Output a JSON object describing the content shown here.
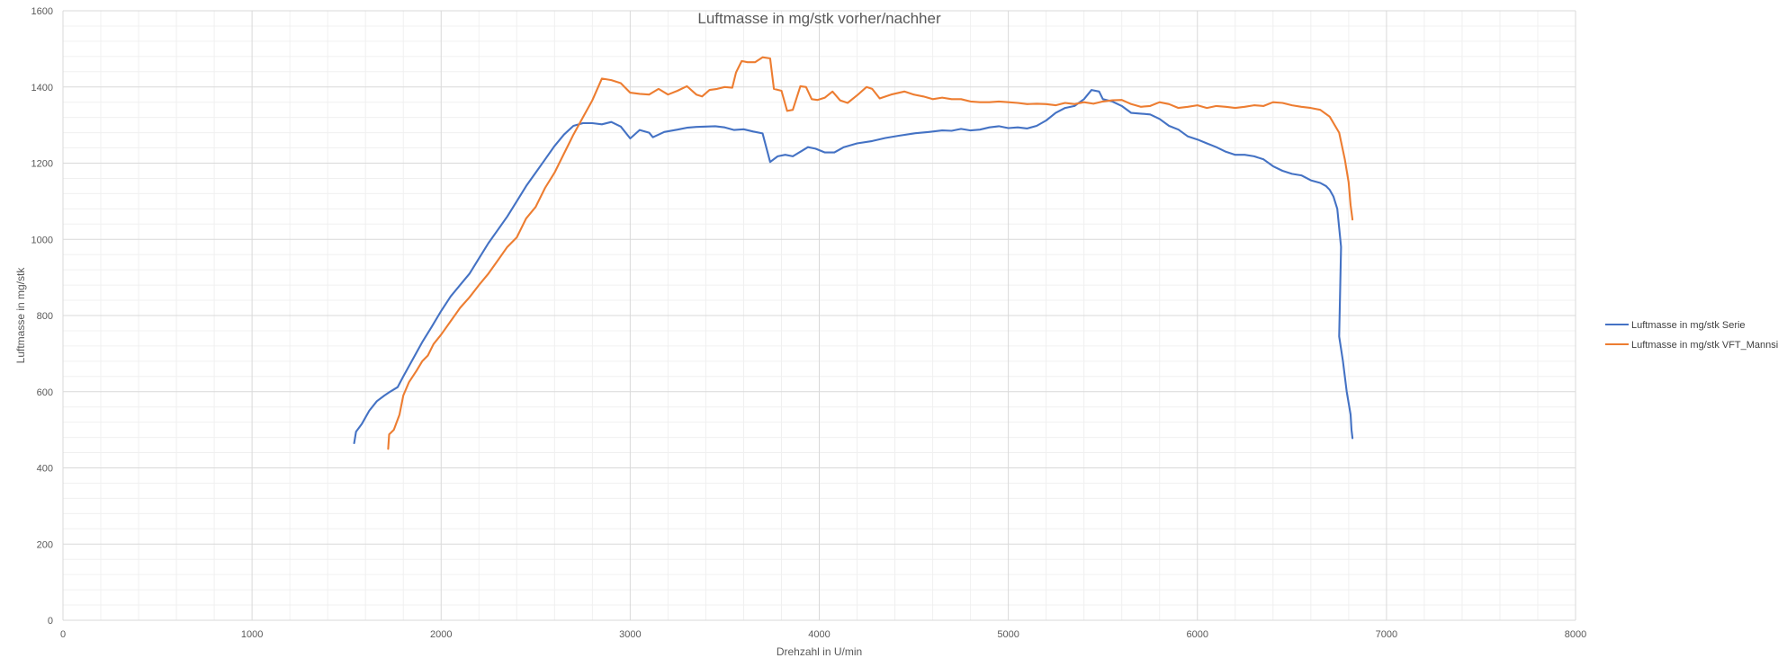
{
  "chart_data": {
    "type": "line",
    "title": "Luftmasse in mg/stk vorher/nachher",
    "xlabel": "Drehzahl in U/min",
    "ylabel": "Luftmasse in mg/stk",
    "xlim": [
      0,
      8000
    ],
    "ylim": [
      0,
      1600
    ],
    "xticks": [
      0,
      1000,
      2000,
      3000,
      4000,
      5000,
      6000,
      7000,
      8000
    ],
    "yticks": [
      0,
      200,
      400,
      600,
      800,
      1000,
      1200,
      1400,
      1600
    ],
    "grid": true,
    "minor_grid": true,
    "legend_position": "right",
    "series": [
      {
        "name": "Luftmasse in mg/stk Serie",
        "color": "#4472C4",
        "points": [
          [
            1540,
            465
          ],
          [
            1550,
            495
          ],
          [
            1580,
            515
          ],
          [
            1620,
            550
          ],
          [
            1660,
            575
          ],
          [
            1700,
            590
          ],
          [
            1730,
            600
          ],
          [
            1770,
            612
          ],
          [
            1800,
            640
          ],
          [
            1850,
            685
          ],
          [
            1900,
            730
          ],
          [
            1950,
            770
          ],
          [
            2000,
            812
          ],
          [
            2050,
            850
          ],
          [
            2100,
            880
          ],
          [
            2150,
            910
          ],
          [
            2200,
            950
          ],
          [
            2250,
            990
          ],
          [
            2300,
            1025
          ],
          [
            2350,
            1060
          ],
          [
            2400,
            1100
          ],
          [
            2450,
            1140
          ],
          [
            2500,
            1175
          ],
          [
            2550,
            1210
          ],
          [
            2600,
            1245
          ],
          [
            2650,
            1275
          ],
          [
            2700,
            1298
          ],
          [
            2750,
            1305
          ],
          [
            2800,
            1305
          ],
          [
            2850,
            1302
          ],
          [
            2900,
            1308
          ],
          [
            2950,
            1296
          ],
          [
            3000,
            1265
          ],
          [
            3050,
            1287
          ],
          [
            3100,
            1280
          ],
          [
            3120,
            1268
          ],
          [
            3180,
            1282
          ],
          [
            3250,
            1288
          ],
          [
            3300,
            1293
          ],
          [
            3350,
            1295
          ],
          [
            3400,
            1296
          ],
          [
            3450,
            1297
          ],
          [
            3500,
            1294
          ],
          [
            3550,
            1287
          ],
          [
            3600,
            1289
          ],
          [
            3650,
            1283
          ],
          [
            3700,
            1278
          ],
          [
            3740,
            1203
          ],
          [
            3780,
            1218
          ],
          [
            3820,
            1222
          ],
          [
            3860,
            1218
          ],
          [
            3900,
            1230
          ],
          [
            3940,
            1242
          ],
          [
            3980,
            1238
          ],
          [
            4030,
            1228
          ],
          [
            4080,
            1228
          ],
          [
            4130,
            1242
          ],
          [
            4200,
            1252
          ],
          [
            4280,
            1258
          ],
          [
            4350,
            1266
          ],
          [
            4420,
            1272
          ],
          [
            4500,
            1278
          ],
          [
            4580,
            1282
          ],
          [
            4650,
            1286
          ],
          [
            4700,
            1285
          ],
          [
            4750,
            1290
          ],
          [
            4800,
            1286
          ],
          [
            4850,
            1288
          ],
          [
            4900,
            1294
          ],
          [
            4950,
            1297
          ],
          [
            5000,
            1292
          ],
          [
            5050,
            1294
          ],
          [
            5100,
            1291
          ],
          [
            5150,
            1298
          ],
          [
            5200,
            1312
          ],
          [
            5250,
            1332
          ],
          [
            5300,
            1345
          ],
          [
            5350,
            1350
          ],
          [
            5400,
            1368
          ],
          [
            5440,
            1392
          ],
          [
            5480,
            1388
          ],
          [
            5500,
            1368
          ],
          [
            5550,
            1362
          ],
          [
            5600,
            1350
          ],
          [
            5650,
            1332
          ],
          [
            5700,
            1330
          ],
          [
            5750,
            1328
          ],
          [
            5800,
            1316
          ],
          [
            5850,
            1298
          ],
          [
            5900,
            1288
          ],
          [
            5950,
            1270
          ],
          [
            6000,
            1262
          ],
          [
            6050,
            1252
          ],
          [
            6100,
            1242
          ],
          [
            6150,
            1230
          ],
          [
            6200,
            1222
          ],
          [
            6250,
            1222
          ],
          [
            6300,
            1218
          ],
          [
            6350,
            1210
          ],
          [
            6400,
            1192
          ],
          [
            6450,
            1180
          ],
          [
            6500,
            1172
          ],
          [
            6550,
            1168
          ],
          [
            6600,
            1155
          ],
          [
            6650,
            1148
          ],
          [
            6680,
            1140
          ],
          [
            6700,
            1130
          ],
          [
            6720,
            1112
          ],
          [
            6740,
            1080
          ],
          [
            6760,
            980
          ],
          [
            6750,
            745
          ],
          [
            6770,
            680
          ],
          [
            6790,
            600
          ],
          [
            6810,
            540
          ],
          [
            6815,
            500
          ],
          [
            6820,
            478
          ]
        ]
      },
      {
        "name": "Luftmasse in mg/stk VFT_Mannsi",
        "color": "#ED7D31",
        "points": [
          [
            1720,
            450
          ],
          [
            1725,
            488
          ],
          [
            1750,
            500
          ],
          [
            1780,
            540
          ],
          [
            1800,
            590
          ],
          [
            1830,
            625
          ],
          [
            1870,
            655
          ],
          [
            1900,
            680
          ],
          [
            1930,
            695
          ],
          [
            1960,
            725
          ],
          [
            2000,
            750
          ],
          [
            2050,
            785
          ],
          [
            2100,
            820
          ],
          [
            2150,
            848
          ],
          [
            2200,
            880
          ],
          [
            2250,
            910
          ],
          [
            2300,
            945
          ],
          [
            2350,
            980
          ],
          [
            2400,
            1005
          ],
          [
            2450,
            1055
          ],
          [
            2500,
            1085
          ],
          [
            2550,
            1135
          ],
          [
            2600,
            1175
          ],
          [
            2650,
            1225
          ],
          [
            2700,
            1275
          ],
          [
            2750,
            1320
          ],
          [
            2800,
            1365
          ],
          [
            2850,
            1422
          ],
          [
            2900,
            1418
          ],
          [
            2950,
            1410
          ],
          [
            3000,
            1385
          ],
          [
            3050,
            1382
          ],
          [
            3100,
            1380
          ],
          [
            3150,
            1395
          ],
          [
            3200,
            1380
          ],
          [
            3250,
            1390
          ],
          [
            3300,
            1402
          ],
          [
            3350,
            1380
          ],
          [
            3380,
            1375
          ],
          [
            3420,
            1392
          ],
          [
            3460,
            1395
          ],
          [
            3500,
            1400
          ],
          [
            3540,
            1398
          ],
          [
            3560,
            1438
          ],
          [
            3590,
            1468
          ],
          [
            3620,
            1465
          ],
          [
            3660,
            1465
          ],
          [
            3700,
            1478
          ],
          [
            3740,
            1475
          ],
          [
            3760,
            1395
          ],
          [
            3800,
            1390
          ],
          [
            3830,
            1337
          ],
          [
            3860,
            1340
          ],
          [
            3900,
            1402
          ],
          [
            3930,
            1400
          ],
          [
            3960,
            1368
          ],
          [
            3990,
            1366
          ],
          [
            4030,
            1372
          ],
          [
            4070,
            1388
          ],
          [
            4110,
            1365
          ],
          [
            4150,
            1358
          ],
          [
            4200,
            1378
          ],
          [
            4250,
            1400
          ],
          [
            4280,
            1395
          ],
          [
            4320,
            1370
          ],
          [
            4380,
            1380
          ],
          [
            4450,
            1388
          ],
          [
            4500,
            1380
          ],
          [
            4550,
            1375
          ],
          [
            4600,
            1368
          ],
          [
            4650,
            1372
          ],
          [
            4700,
            1368
          ],
          [
            4750,
            1368
          ],
          [
            4800,
            1362
          ],
          [
            4850,
            1360
          ],
          [
            4900,
            1360
          ],
          [
            4950,
            1362
          ],
          [
            5000,
            1360
          ],
          [
            5050,
            1358
          ],
          [
            5100,
            1355
          ],
          [
            5150,
            1356
          ],
          [
            5200,
            1355
          ],
          [
            5250,
            1352
          ],
          [
            5300,
            1358
          ],
          [
            5350,
            1355
          ],
          [
            5400,
            1360
          ],
          [
            5450,
            1356
          ],
          [
            5500,
            1362
          ],
          [
            5550,
            1365
          ],
          [
            5600,
            1366
          ],
          [
            5650,
            1355
          ],
          [
            5700,
            1348
          ],
          [
            5750,
            1350
          ],
          [
            5800,
            1360
          ],
          [
            5850,
            1355
          ],
          [
            5900,
            1345
          ],
          [
            5950,
            1348
          ],
          [
            6000,
            1352
          ],
          [
            6050,
            1345
          ],
          [
            6100,
            1350
          ],
          [
            6150,
            1348
          ],
          [
            6200,
            1345
          ],
          [
            6250,
            1348
          ],
          [
            6300,
            1352
          ],
          [
            6350,
            1350
          ],
          [
            6400,
            1360
          ],
          [
            6450,
            1358
          ],
          [
            6500,
            1352
          ],
          [
            6550,
            1348
          ],
          [
            6600,
            1345
          ],
          [
            6650,
            1340
          ],
          [
            6700,
            1322
          ],
          [
            6750,
            1280
          ],
          [
            6780,
            1210
          ],
          [
            6800,
            1150
          ],
          [
            6810,
            1090
          ],
          [
            6820,
            1052
          ]
        ]
      }
    ]
  }
}
